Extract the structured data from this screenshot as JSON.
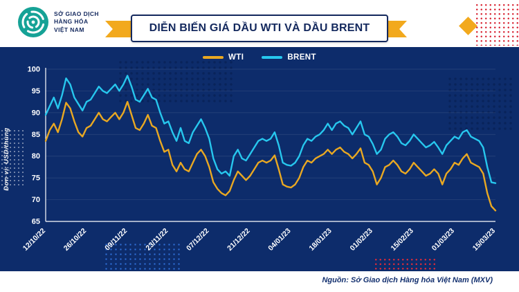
{
  "brand": {
    "name_lines": [
      "SỞ GIAO DỊCH",
      "HÀNG HÓA",
      "VIỆT NAM"
    ]
  },
  "title": "DIỄN BIẾN GIÁ DẦU WTI VÀ DẦU BRENT",
  "legend": [
    {
      "label": "WTI",
      "color": "#E9A822"
    },
    {
      "label": "BRENT",
      "color": "#27C7EE"
    }
  ],
  "y_axis_label": "Đơn vị: USD/thùng",
  "source": "Nguồn: Sở Giao dịch Hàng hóa Việt Nam (MXV)",
  "colors": {
    "panel_bg": "#0d2c6b",
    "accent_yellow": "#F2A91D",
    "accent_red": "#d92b3a",
    "title_navy": "#14295e",
    "axis_text": "#ffffff"
  },
  "chart_data": {
    "type": "line",
    "title": "DIỄN BIẾN GIÁ DẦU WTI VÀ DẦU BRENT",
    "ylabel": "Đơn vị: USD/thùng",
    "ylim": [
      65,
      100
    ],
    "y_ticks": [
      65,
      70,
      75,
      80,
      85,
      90,
      95,
      100
    ],
    "grid": "faint-horizontal",
    "legend_position": "top-center",
    "x_tick_labels": [
      "12/10/22",
      "26/10/22",
      "09/11/22",
      "23/11/22",
      "07/12/22",
      "21/12/22",
      "04/01/23",
      "18/01/23",
      "01/02/23",
      "15/02/23",
      "01/03/23",
      "15/03/23"
    ],
    "x_tick_indices": [
      0,
      10,
      20,
      30,
      40,
      50,
      60,
      70,
      80,
      90,
      100,
      110
    ],
    "series": [
      {
        "name": "WTI",
        "color": "#E9A822",
        "values": [
          83.5,
          86.0,
          87.5,
          85.5,
          88.5,
          92.3,
          91.0,
          88.0,
          85.5,
          84.5,
          86.5,
          87.0,
          88.5,
          90.0,
          88.5,
          88.0,
          89.0,
          90.0,
          88.5,
          90.0,
          92.5,
          89.5,
          86.5,
          86.0,
          87.5,
          89.5,
          87.0,
          86.5,
          83.5,
          81.0,
          81.5,
          78.0,
          76.5,
          78.5,
          77.0,
          76.5,
          78.5,
          80.5,
          81.5,
          80.0,
          77.5,
          74.0,
          72.5,
          71.5,
          71.0,
          72.0,
          74.5,
          76.5,
          75.5,
          74.5,
          75.5,
          77.0,
          78.5,
          79.0,
          78.5,
          79.0,
          80.2,
          77.0,
          73.5,
          73.0,
          72.8,
          73.5,
          75.0,
          77.5,
          79.0,
          78.5,
          79.5,
          80.0,
          80.5,
          81.5,
          80.5,
          81.5,
          82.0,
          81.0,
          80.5,
          79.5,
          80.5,
          81.8,
          78.5,
          78.0,
          76.5,
          73.5,
          75.0,
          77.5,
          78.0,
          79.0,
          78.0,
          76.5,
          76.0,
          77.0,
          78.5,
          77.5,
          76.5,
          75.5,
          76.0,
          77.0,
          76.0,
          73.5,
          76.0,
          77.0,
          78.5,
          78.0,
          79.5,
          80.5,
          78.5,
          78.0,
          77.5,
          76.0,
          71.5,
          68.5,
          67.5
        ]
      },
      {
        "name": "BRENT",
        "color": "#27C7EE",
        "values": [
          89.5,
          91.5,
          93.5,
          91.0,
          94.0,
          97.9,
          96.5,
          93.5,
          92.0,
          90.5,
          92.5,
          93.0,
          94.5,
          96.0,
          95.0,
          94.5,
          95.5,
          96.5,
          95.0,
          96.5,
          98.5,
          96.0,
          93.0,
          92.5,
          94.0,
          95.5,
          93.5,
          93.0,
          90.0,
          87.5,
          88.0,
          85.5,
          83.5,
          86.5,
          83.5,
          83.0,
          85.5,
          87.0,
          88.5,
          86.5,
          84.0,
          79.5,
          77.0,
          76.0,
          76.5,
          75.5,
          80.0,
          81.5,
          79.5,
          79.0,
          80.5,
          82.0,
          83.5,
          84.0,
          83.5,
          84.0,
          85.5,
          82.5,
          78.5,
          78.0,
          77.8,
          78.5,
          80.0,
          82.5,
          84.0,
          83.5,
          84.5,
          85.0,
          86.0,
          87.5,
          86.0,
          87.5,
          88.0,
          87.0,
          86.5,
          85.0,
          86.5,
          88.0,
          85.0,
          84.5,
          82.8,
          80.5,
          81.5,
          84.0,
          85.0,
          85.5,
          84.5,
          83.0,
          82.5,
          83.5,
          85.0,
          84.0,
          83.0,
          82.0,
          82.5,
          83.3,
          82.0,
          80.5,
          82.5,
          83.5,
          84.5,
          84.0,
          85.5,
          86.0,
          84.5,
          84.0,
          83.5,
          82.0,
          77.5,
          74.0,
          73.8
        ]
      }
    ]
  }
}
